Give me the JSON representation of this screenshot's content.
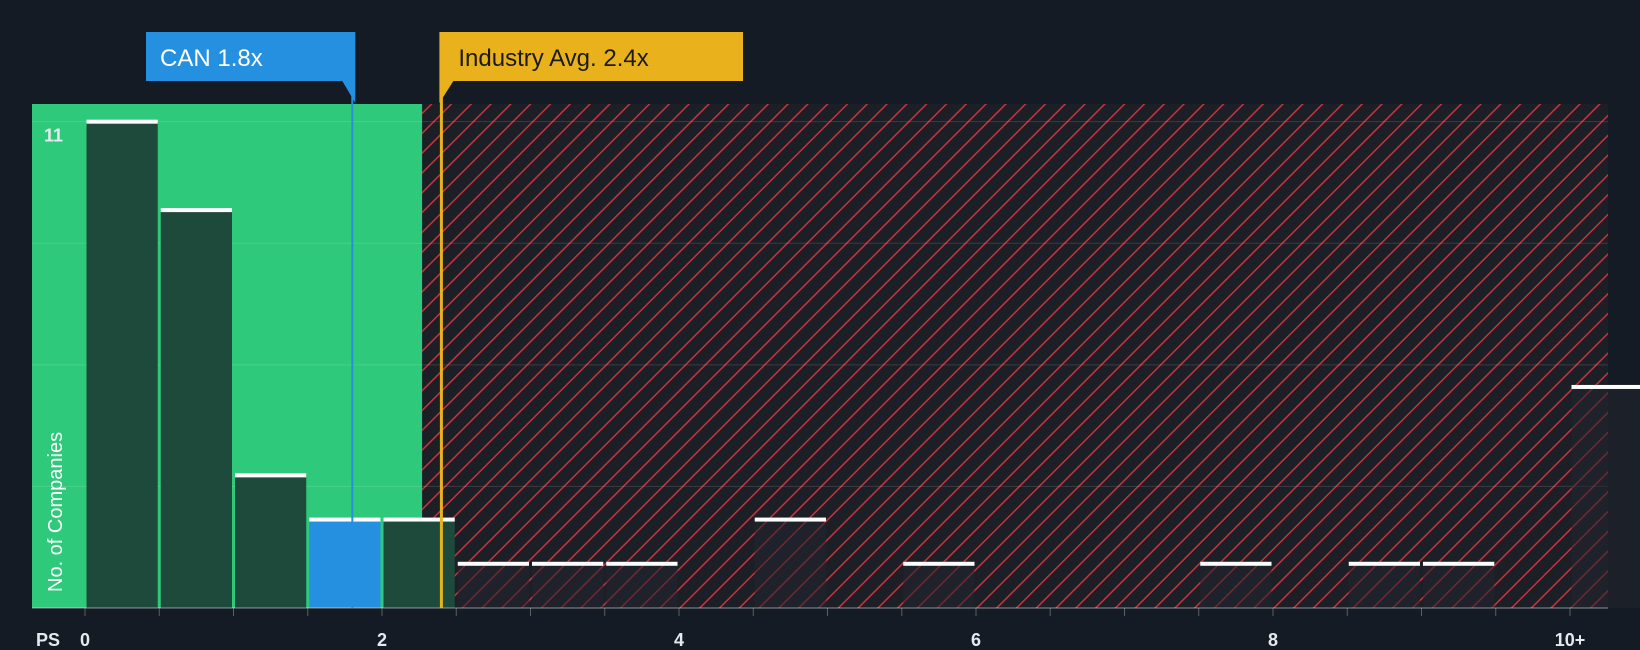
{
  "chart_data": {
    "type": "bar",
    "xlabel": "PS",
    "ylabel": "No. of Companies",
    "x_tick_labels": [
      "0",
      "2",
      "4",
      "6",
      "8",
      "10+"
    ],
    "x_tick_values": [
      0,
      2,
      4,
      6,
      8,
      10
    ],
    "y_tick_labels": [
      "11"
    ],
    "y_tick_values": [
      11
    ],
    "xlim": [
      0,
      10.25
    ],
    "ylim": [
      0,
      11.4
    ],
    "bin_width": 0.5,
    "bins": [
      {
        "x": 0.0,
        "value": 11
      },
      {
        "x": 0.5,
        "value": 9
      },
      {
        "x": 1.0,
        "value": 3
      },
      {
        "x": 1.5,
        "value": 2,
        "highlight": true
      },
      {
        "x": 2.0,
        "value": 2
      },
      {
        "x": 2.5,
        "value": 1
      },
      {
        "x": 3.0,
        "value": 1
      },
      {
        "x": 3.5,
        "value": 1
      },
      {
        "x": 4.5,
        "value": 2
      },
      {
        "x": 5.5,
        "value": 1
      },
      {
        "x": 7.5,
        "value": 1
      },
      {
        "x": 8.5,
        "value": 1
      },
      {
        "x": 9.0,
        "value": 1
      },
      {
        "x": 10.0,
        "value": 5
      }
    ],
    "fair_zone_max": 2.27,
    "company": {
      "label": "CAN 1.8x",
      "value": 1.8
    },
    "industry": {
      "label": "Industry Avg. 2.4x",
      "value": 2.4
    },
    "colors": {
      "background": "#151b24",
      "fair_zone": "#2ec97a",
      "bar": "#1e4a3b",
      "highlight": "#2590e0",
      "hatch": "#c7333b",
      "industry": "#e9b21c",
      "cap": "#ffffff"
    }
  }
}
